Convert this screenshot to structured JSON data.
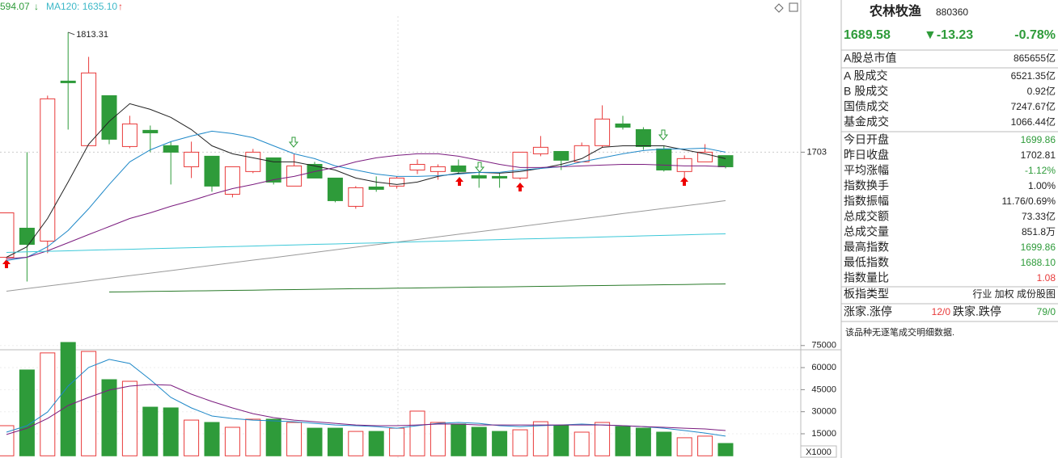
{
  "chart_data": [
    {
      "type": "candlestick",
      "header": {
        "left_text": "594.07",
        "left_arrow": "↓",
        "ma_text": "MA120: 1635.10",
        "ma_arrow": "↑"
      },
      "annotation": "1813.31",
      "categories": [
        null,
        null,
        null,
        null,
        null,
        null,
        null,
        null,
        null,
        null,
        null,
        null,
        null,
        null,
        null,
        null,
        null,
        null,
        null,
        null,
        null,
        null,
        null,
        null,
        null,
        null,
        null,
        null,
        null,
        null,
        null,
        null,
        null,
        null,
        null,
        null
      ],
      "up_color": "#e83a3a",
      "down_color": "#2e9b3a",
      "open": [
        1606.3,
        1633.1,
        1621.2,
        1768.4,
        1709.0,
        1755.0,
        1708.2,
        1723.1,
        1709.0,
        1689.6,
        1699.3,
        1664.3,
        1685.2,
        1697.8,
        1671.8,
        1691.8,
        1679.2,
        1653.2,
        1671.0,
        1671.8,
        1686.6,
        1685.2,
        1690.4,
        1681.4,
        1680.7,
        1679.2,
        1701.5,
        1703.7,
        1694.1,
        1709.0,
        1729.0,
        1723.8,
        1706.0,
        1685.2,
        1694.1,
        1699.86
      ],
      "close": [
        1647.2,
        1618.2,
        1752.1,
        1766.9,
        1775.9,
        1714.9,
        1729.0,
        1720.8,
        1703.0,
        1703.0,
        1671.8,
        1689.6,
        1703.0,
        1675.5,
        1690.4,
        1679.2,
        1658.4,
        1670.3,
        1668.8,
        1679.2,
        1691.8,
        1689.6,
        1685.2,
        1679.2,
        1679.2,
        1703.0,
        1707.5,
        1695.6,
        1709.0,
        1733.5,
        1726.0,
        1708.2,
        1686.6,
        1697.1,
        1703.0,
        1689.58
      ],
      "high": [
        1647.2,
        1703.0,
        1755.0,
        1813.31,
        1790.7,
        1755.0,
        1736.5,
        1727.5,
        1712.7,
        1712.7,
        1699.3,
        1689.6,
        1706.0,
        1697.8,
        1701.5,
        1694.1,
        1679.2,
        1671.8,
        1680.7,
        1680.7,
        1696.3,
        1691.8,
        1696.3,
        1684.4,
        1683.7,
        1703.0,
        1717.9,
        1703.7,
        1711.9,
        1746.1,
        1736.5,
        1726.0,
        1709.0,
        1700.0,
        1710.4,
        1699.86
      ],
      "low": [
        1604.9,
        1584.0,
        1610.1,
        1723.8,
        1709.0,
        1710.4,
        1706.7,
        1703.0,
        1673.3,
        1679.2,
        1666.6,
        1661.4,
        1683.7,
        1673.3,
        1671.8,
        1679.2,
        1656.9,
        1651.0,
        1666.6,
        1669.5,
        1682.9,
        1677.7,
        1682.9,
        1670.3,
        1670.3,
        1677.7,
        1699.3,
        1686.6,
        1694.1,
        1707.5,
        1723.8,
        1705.2,
        1685.2,
        1679.2,
        1694.1,
        1688.1
      ],
      "series": [
        {
          "color": "#222222",
          "values": [
            1606.3,
            1616.0,
            1642.0,
            1675.5,
            1710.4,
            1731.3,
            1747.6,
            1742.4,
            1735.0,
            1723.8,
            1708.9,
            1701.5,
            1697.8,
            1694.1,
            1694.1,
            1690.4,
            1686.6,
            1679.2,
            1675.5,
            1673.3,
            1675.5,
            1680.7,
            1683.7,
            1684.4,
            1683.7,
            1685.2,
            1688.1,
            1691.8,
            1697.1,
            1707.5,
            1708.9,
            1708.9,
            1708.9,
            1705.2,
            1701.5,
            1697.1
          ]
        },
        {
          "color": "#1e88c8",
          "values": [
            1603.4,
            1606.3,
            1616.0,
            1630.9,
            1651.0,
            1673.3,
            1694.1,
            1705.2,
            1712.7,
            1717.9,
            1722.3,
            1720.1,
            1716.4,
            1708.9,
            1701.5,
            1697.1,
            1690.4,
            1686.6,
            1682.9,
            1680.7,
            1680.7,
            1681.4,
            1682.9,
            1684.4,
            1684.4,
            1686.6,
            1688.1,
            1689.6,
            1694.1,
            1697.8,
            1701.5,
            1704.5,
            1706.0,
            1706.0,
            1706.7,
            1703.0
          ]
        },
        {
          "color": "#7b1c7f",
          "values": [
            1604.9,
            1606.3,
            1612.3,
            1619.7,
            1627.2,
            1634.6,
            1642.0,
            1647.2,
            1653.2,
            1658.4,
            1664.3,
            1669.5,
            1673.3,
            1677.7,
            1680.7,
            1685.2,
            1688.9,
            1694.1,
            1697.8,
            1700.0,
            1701.5,
            1701.5,
            1699.3,
            1695.6,
            1691.8,
            1688.9,
            1688.9,
            1689.6,
            1690.4,
            1691.1,
            1691.8,
            1691.8,
            1691.1,
            1690.4,
            1690.4,
            1689.6
          ]
        },
        {
          "color": "#9a9a9a",
          "values": [
            1575.1,
            1577.5,
            1579.9,
            1582.2,
            1584.6,
            1587.0,
            1589.4,
            1591.8,
            1594.1,
            1596.5,
            1598.9,
            1601.3,
            1603.7,
            1606.0,
            1608.4,
            1610.8,
            1613.2,
            1615.6,
            1617.9,
            1620.3,
            1622.7,
            1625.1,
            1627.5,
            1629.8,
            1632.2,
            1634.6,
            1637.0,
            1639.4,
            1641.7,
            1644.1,
            1646.5,
            1648.9,
            1651.3,
            1653.6,
            1656.0,
            1658.4
          ]
        },
        {
          "color": "#3cc8d8",
          "values": [
            1610.8,
            1611.3,
            1611.8,
            1612.3,
            1612.8,
            1613.3,
            1613.7,
            1614.2,
            1614.7,
            1615.2,
            1615.7,
            1616.2,
            1616.7,
            1617.2,
            1617.7,
            1618.2,
            1618.6,
            1619.1,
            1619.6,
            1620.1,
            1620.6,
            1621.1,
            1621.6,
            1622.1,
            1622.6,
            1623.1,
            1623.5,
            1624.0,
            1624.5,
            1625.0,
            1625.5,
            1626.0,
            1626.5,
            1627.0,
            1627.5,
            1627.9
          ]
        },
        {
          "color": "#2a7a2a",
          "values": [
            null,
            null,
            null,
            null,
            null,
            1574.4,
            1574.6,
            1574.9,
            1575.1,
            1575.4,
            1575.6,
            1575.9,
            1576.1,
            1576.4,
            1576.6,
            1576.9,
            1577.1,
            1577.4,
            1577.6,
            1577.9,
            1578.1,
            1578.4,
            1578.6,
            1578.9,
            1579.1,
            1579.3,
            1579.6,
            1579.8,
            1580.1,
            1580.3,
            1580.6,
            1580.8,
            1581.1,
            1581.3,
            1581.6,
            1581.8
          ]
        }
      ],
      "ylim": [
        1522,
        1843
      ],
      "yticks": [
        1703
      ],
      "grid": true
    },
    {
      "type": "bar",
      "unit_label": "X1000",
      "categories": [
        null,
        null,
        null,
        null,
        null,
        null,
        null,
        null,
        null,
        null,
        null,
        null,
        null,
        null,
        null,
        null,
        null,
        null,
        null,
        null,
        null,
        null,
        null,
        null,
        null,
        null,
        null,
        null,
        null,
        null,
        null,
        null,
        null,
        null,
        null,
        null
      ],
      "values": [
        20500,
        58400,
        70000,
        77100,
        71000,
        51800,
        50700,
        33100,
        32600,
        24300,
        22700,
        19400,
        24900,
        24900,
        22700,
        18800,
        18800,
        16600,
        16600,
        18800,
        30400,
        22700,
        21600,
        19400,
        16600,
        17700,
        23200,
        20500,
        16100,
        22700,
        19900,
        18800,
        16100,
        12300,
        13400,
        8400
      ],
      "series": [
        {
          "color": "#1e88c8",
          "values": [
            16100,
            20500,
            29800,
            47400,
            60100,
            65600,
            62800,
            51800,
            39700,
            32600,
            27100,
            25400,
            24300,
            23800,
            23200,
            22100,
            21000,
            20500,
            19900,
            18800,
            20500,
            22100,
            22700,
            22100,
            20500,
            19900,
            20500,
            21000,
            21600,
            21000,
            20500,
            19900,
            18800,
            17200,
            15500,
            13400
          ]
        },
        {
          "color": "#7b1c7f",
          "values": [
            14500,
            18800,
            25400,
            34200,
            39700,
            44700,
            47400,
            48500,
            48000,
            41900,
            37000,
            32600,
            28700,
            26000,
            24300,
            23200,
            22100,
            21000,
            20500,
            20500,
            21000,
            21600,
            21600,
            21000,
            21000,
            21000,
            21000,
            21000,
            21000,
            21000,
            20500,
            19900,
            19400,
            18800,
            18300,
            17200
          ]
        }
      ],
      "ylim": [
        0,
        79000
      ],
      "yticks": [
        15000,
        30000,
        45000,
        60000,
        75000
      ],
      "grid": true
    }
  ],
  "panel": {
    "name": "农林牧渔",
    "code": "880360",
    "price": "1689.58",
    "change": "▼-13.23",
    "change_pct": "-0.78%",
    "rows": [
      {
        "label": "A股总市值",
        "value": "865655亿"
      },
      {
        "label": "A 股成交",
        "value": "6521.35亿"
      },
      {
        "label": "B 股成交",
        "value": "0.92亿"
      },
      {
        "label": "国债成交",
        "value": "7247.67亿"
      },
      {
        "label": "基金成交",
        "value": "1066.44亿"
      },
      {
        "label": "今日开盘",
        "value": "1699.86"
      },
      {
        "label": "昨日收盘",
        "value": "1702.81"
      },
      {
        "label": "平均涨幅",
        "value": "-1.12%"
      },
      {
        "label": "指数换手",
        "value": "1.00%"
      },
      {
        "label": "指数振幅",
        "value": "11.76/0.69%"
      },
      {
        "label": "总成交额",
        "value": "73.33亿"
      },
      {
        "label": "总成交量",
        "value": "851.8万"
      },
      {
        "label": "最高指数",
        "value": "1699.86"
      },
      {
        "label": "最低指数",
        "value": "1688.10"
      },
      {
        "label": "指数量比",
        "value": "1.08"
      },
      {
        "label": "板指类型",
        "value": "行业 加权 成份股图"
      }
    ],
    "breadth": {
      "up_label": "涨家.涨停",
      "up_value": "12/0",
      "down_label": "跌家.跌停",
      "down_value": "79/0"
    },
    "note": "该品种无逐笔成交明细数据."
  }
}
